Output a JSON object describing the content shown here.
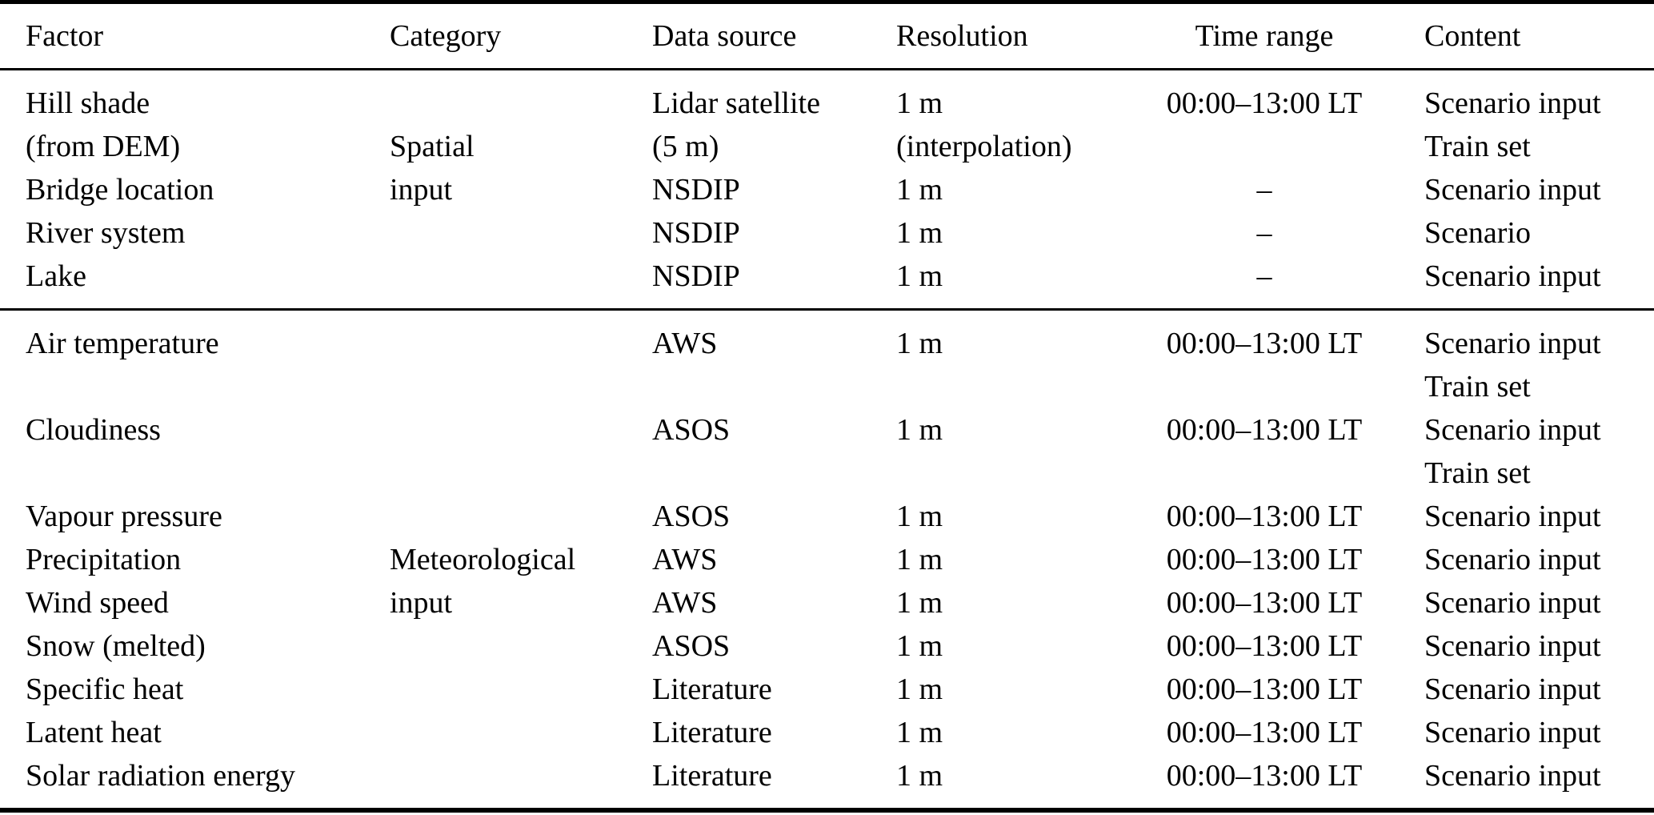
{
  "colors": {
    "background": "#ffffff",
    "text": "#000000",
    "rule": "#000000"
  },
  "table": {
    "columns": [
      {
        "key": "factor",
        "label": "Factor",
        "align": "left"
      },
      {
        "key": "category",
        "label": "Category",
        "align": "left"
      },
      {
        "key": "source",
        "label": "Data source",
        "align": "left"
      },
      {
        "key": "resolution",
        "label": "Resolution",
        "align": "left"
      },
      {
        "key": "time",
        "label": "Time range",
        "align": "center"
      },
      {
        "key": "content",
        "label": "Content",
        "align": "left"
      }
    ],
    "sections": [
      {
        "name": "spatial-input",
        "rows": [
          [
            "Hill shade",
            "",
            "Lidar satellite",
            "1 m",
            "00:00–13:00 LT",
            "Scenario input"
          ],
          [
            "(from DEM)",
            "Spatial",
            "(5 m)",
            "(interpolation)",
            "",
            "Train set"
          ],
          [
            "Bridge location",
            "input",
            "NSDIP",
            "1 m",
            "–",
            "Scenario input"
          ],
          [
            "River system",
            "",
            "NSDIP",
            "1 m",
            "–",
            "Scenario"
          ],
          [
            "Lake",
            "",
            "NSDIP",
            "1 m",
            "–",
            "Scenario input"
          ]
        ]
      },
      {
        "name": "meteorological-input",
        "rows": [
          [
            "Air temperature",
            "",
            "AWS",
            "1 m",
            "00:00–13:00 LT",
            "Scenario input"
          ],
          [
            "",
            "",
            "",
            "",
            "",
            "Train set"
          ],
          [
            "Cloudiness",
            "",
            "ASOS",
            "1 m",
            "00:00–13:00 LT",
            "Scenario input"
          ],
          [
            "",
            "",
            "",
            "",
            "",
            "Train set"
          ],
          [
            "Vapour pressure",
            "",
            "ASOS",
            "1 m",
            "00:00–13:00 LT",
            "Scenario input"
          ],
          [
            "Precipitation",
            "Meteorological",
            "AWS",
            "1 m",
            "00:00–13:00 LT",
            "Scenario input"
          ],
          [
            "Wind speed",
            "input",
            "AWS",
            "1 m",
            "00:00–13:00 LT",
            "Scenario input"
          ],
          [
            "Snow (melted)",
            "",
            "ASOS",
            "1 m",
            "00:00–13:00 LT",
            "Scenario input"
          ],
          [
            "Specific heat",
            "",
            "Literature",
            "1 m",
            "00:00–13:00 LT",
            "Scenario input"
          ],
          [
            "Latent heat",
            "",
            "Literature",
            "1 m",
            "00:00–13:00 LT",
            "Scenario input"
          ],
          [
            "Solar radiation energy",
            "",
            "Literature",
            "1 m",
            "00:00–13:00 LT",
            "Scenario input"
          ]
        ]
      }
    ]
  }
}
